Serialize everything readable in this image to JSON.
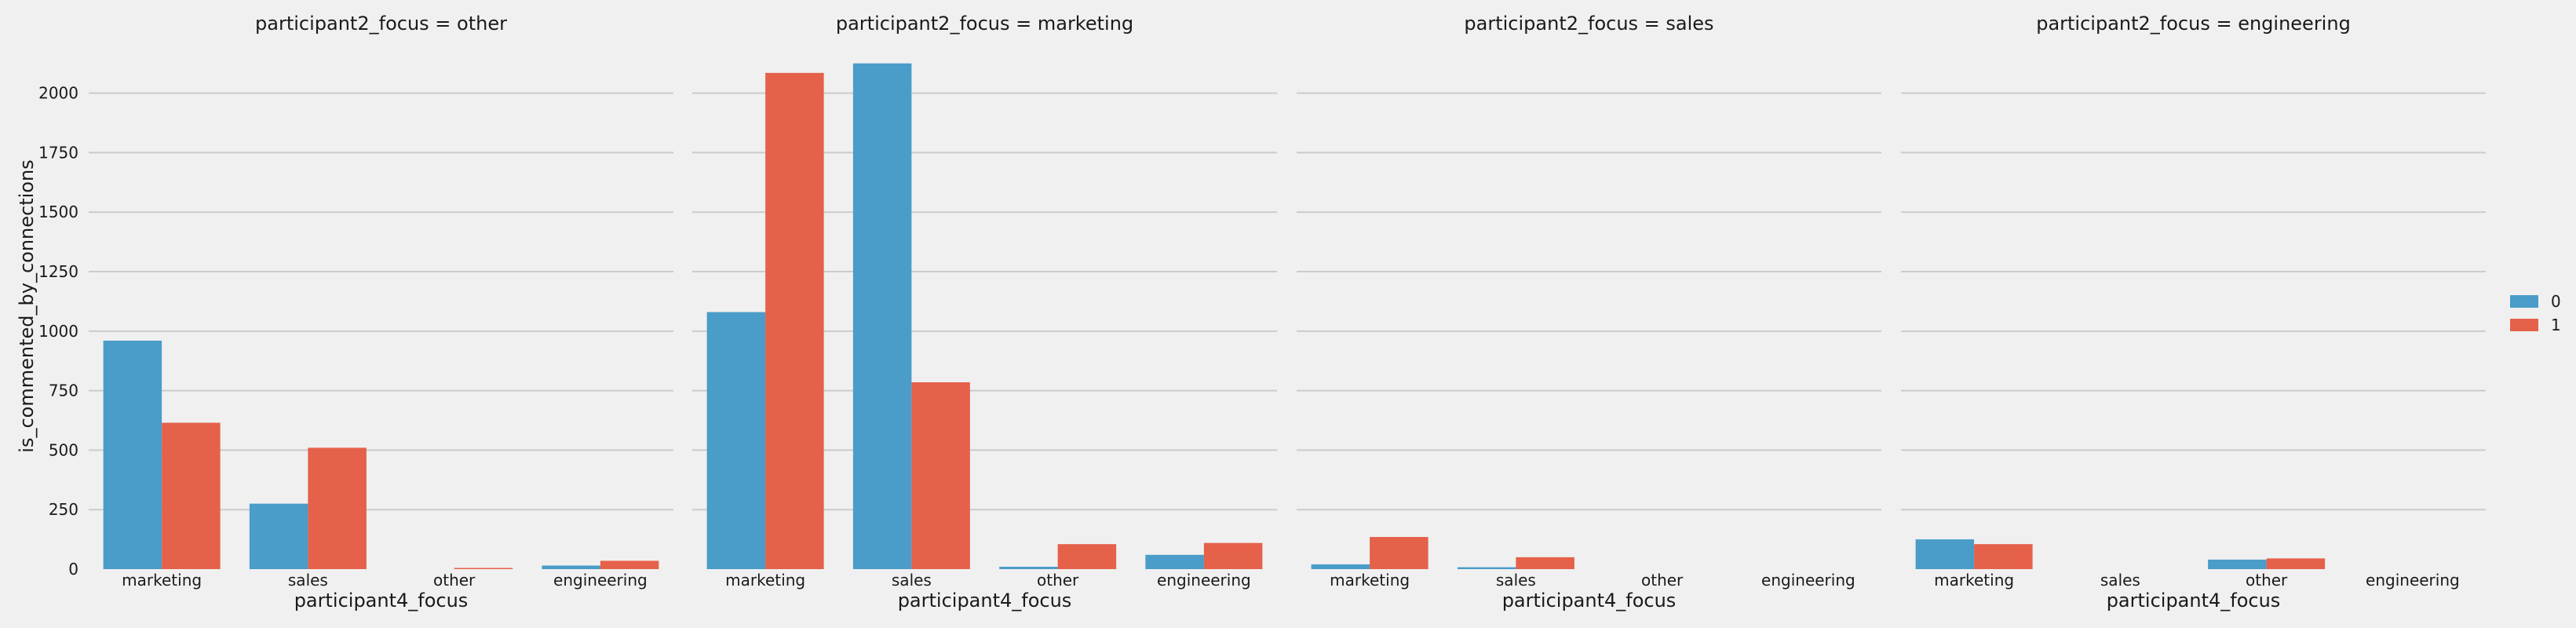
{
  "chart_data": {
    "type": "bar",
    "facet_label_prefix": "participant2_focus = ",
    "facets": [
      "other",
      "marketing",
      "sales",
      "engineering"
    ],
    "categories": [
      "marketing",
      "sales",
      "other",
      "engineering"
    ],
    "xlabel": "participant4_focus",
    "ylabel": "is_commented_by_connections",
    "ylim": [
      0,
      2200
    ],
    "yticks": [
      0,
      250,
      500,
      750,
      1000,
      1250,
      1500,
      1750,
      2000
    ],
    "grid": "horizontal",
    "legend_placement": "right",
    "series": [
      {
        "name": "0",
        "color": "#4a9cc9",
        "values": [
          [
            960,
            275,
            0,
            15
          ],
          [
            1080,
            2125,
            10,
            60
          ],
          [
            20,
            8,
            0,
            0
          ],
          [
            125,
            0,
            40,
            0
          ]
        ]
      },
      {
        "name": "1",
        "color": "#e5614a",
        "values": [
          [
            615,
            510,
            5,
            35
          ],
          [
            2085,
            785,
            105,
            110
          ],
          [
            135,
            50,
            0,
            0
          ],
          [
            105,
            0,
            45,
            0
          ]
        ]
      }
    ]
  }
}
